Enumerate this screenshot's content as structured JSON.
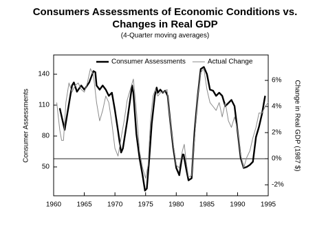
{
  "chart_data": {
    "type": "line",
    "title": "Consumers Assessments of Economic Conditions vs.",
    "title_line2": "Changes in Real GDP",
    "subtitle": "(4-Quarter moving averages)",
    "ylabel": "Consumer Assessments",
    "y2label": "Change in Real GDP (1987 $)",
    "xlim": [
      1960,
      1995
    ],
    "xticks": [
      1960,
      1965,
      1970,
      1975,
      1980,
      1985,
      1990,
      1995
    ],
    "ylim": [
      22,
      158.7
    ],
    "yticks": [
      50,
      80,
      110,
      140
    ],
    "y2lim": [
      -2.84,
      7.95
    ],
    "y2ticks": [
      {
        "value": -2,
        "label": "-2%"
      },
      {
        "value": 0,
        "label": "0%"
      },
      {
        "value": 2,
        "label": "2%"
      },
      {
        "value": 4,
        "label": "4%"
      },
      {
        "value": 6,
        "label": "6%"
      }
    ],
    "legend": "upper center",
    "zero_line": true,
    "series": [
      {
        "name": "Consumer Assessments",
        "color": "#000000",
        "width": 2.4,
        "x": [
          1961,
          1961.8,
          1963,
          1963.3,
          1963.8,
          1964.5,
          1965,
          1965.8,
          1966.5,
          1966.8,
          1967,
          1967.5,
          1968,
          1968.5,
          1969,
          1969.5,
          1970,
          1970.5,
          1971,
          1971.3,
          1972,
          1972.8,
          1973,
          1973.5,
          1974,
          1974.5,
          1974.9,
          1975.2,
          1975.6,
          1976,
          1976.5,
          1976.8,
          1977,
          1977.4,
          1977.8,
          1978.2,
          1978.6,
          1979,
          1979.5,
          1980,
          1980.5,
          1981,
          1981.2,
          1981.6,
          1982,
          1982.5,
          1983,
          1983.5,
          1984,
          1984.5,
          1985,
          1985.5,
          1986,
          1986.5,
          1987,
          1987.5,
          1988,
          1988.5,
          1989,
          1989.5,
          1990,
          1990.5,
          1991,
          1991.5,
          1992,
          1992.5,
          1993,
          1993.5,
          1994,
          1994.5
        ],
        "values": [
          107,
          86,
          129,
          132,
          123,
          129,
          125,
          132,
          143,
          142,
          129,
          125,
          129,
          125,
          119,
          122,
          105,
          85,
          64,
          68,
          95,
          129,
          122,
          82,
          59,
          42,
          27,
          29,
          59,
          92,
          119,
          127,
          122,
          125,
          122,
          124,
          119,
          95,
          69,
          49,
          42,
          62,
          62,
          49,
          37,
          39,
          85,
          119,
          145,
          147,
          140,
          125,
          124,
          119,
          122,
          119,
          109,
          112,
          115,
          109,
          85,
          59,
          49,
          50,
          52,
          55,
          79,
          89,
          102,
          119
        ]
      },
      {
        "name": "Actual Change",
        "color": "#8a8a8a",
        "width": 1,
        "axis": "y2",
        "x": [
          1960.5,
          1961,
          1961.3,
          1961.6,
          1962,
          1962.5,
          1963,
          1963.5,
          1964,
          1964.5,
          1965,
          1965.5,
          1966,
          1966.5,
          1967,
          1967.5,
          1968,
          1968.5,
          1969,
          1969.5,
          1970,
          1970.5,
          1971,
          1971.5,
          1972,
          1972.5,
          1973,
          1973.5,
          1974,
          1974.5,
          1975,
          1975.4,
          1975.8,
          1976.2,
          1976.6,
          1977,
          1977.5,
          1978,
          1978.5,
          1979,
          1979.5,
          1980,
          1980.5,
          1981,
          1981.3,
          1981.7,
          1982,
          1982.5,
          1983,
          1983.5,
          1984,
          1984.5,
          1985,
          1985.5,
          1986,
          1986.5,
          1987,
          1987.5,
          1988,
          1988.5,
          1989,
          1989.5,
          1990,
          1990.5,
          1991,
          1991.5,
          1992,
          1992.5,
          1993,
          1993.5,
          1994,
          1994.5,
          1995
        ],
        "values": [
          4.3,
          2.2,
          1.4,
          1.4,
          4.3,
          5.8,
          5.1,
          5.6,
          5.8,
          5.3,
          5.1,
          5.8,
          6.9,
          6.4,
          4.3,
          2.9,
          3.7,
          4.8,
          4.3,
          2.7,
          0.8,
          0.2,
          1.6,
          2.9,
          4.5,
          5.3,
          6.1,
          3.7,
          0.6,
          -0.7,
          -1.5,
          -0.5,
          2.9,
          4.8,
          5.3,
          4.8,
          5.1,
          5.1,
          5.3,
          2.9,
          1.1,
          -0.5,
          -0.7,
          0.6,
          1.1,
          -0.5,
          -1.4,
          -1.3,
          1.6,
          4.8,
          6.6,
          6.9,
          5.3,
          4.3,
          4.0,
          3.7,
          4.3,
          3.2,
          4.3,
          2.9,
          2.4,
          3.2,
          2.2,
          0.3,
          -0.7,
          0.1,
          0.6,
          1.6,
          2.4,
          3.5,
          3.5,
          4.0,
          4.3
        ]
      }
    ]
  }
}
